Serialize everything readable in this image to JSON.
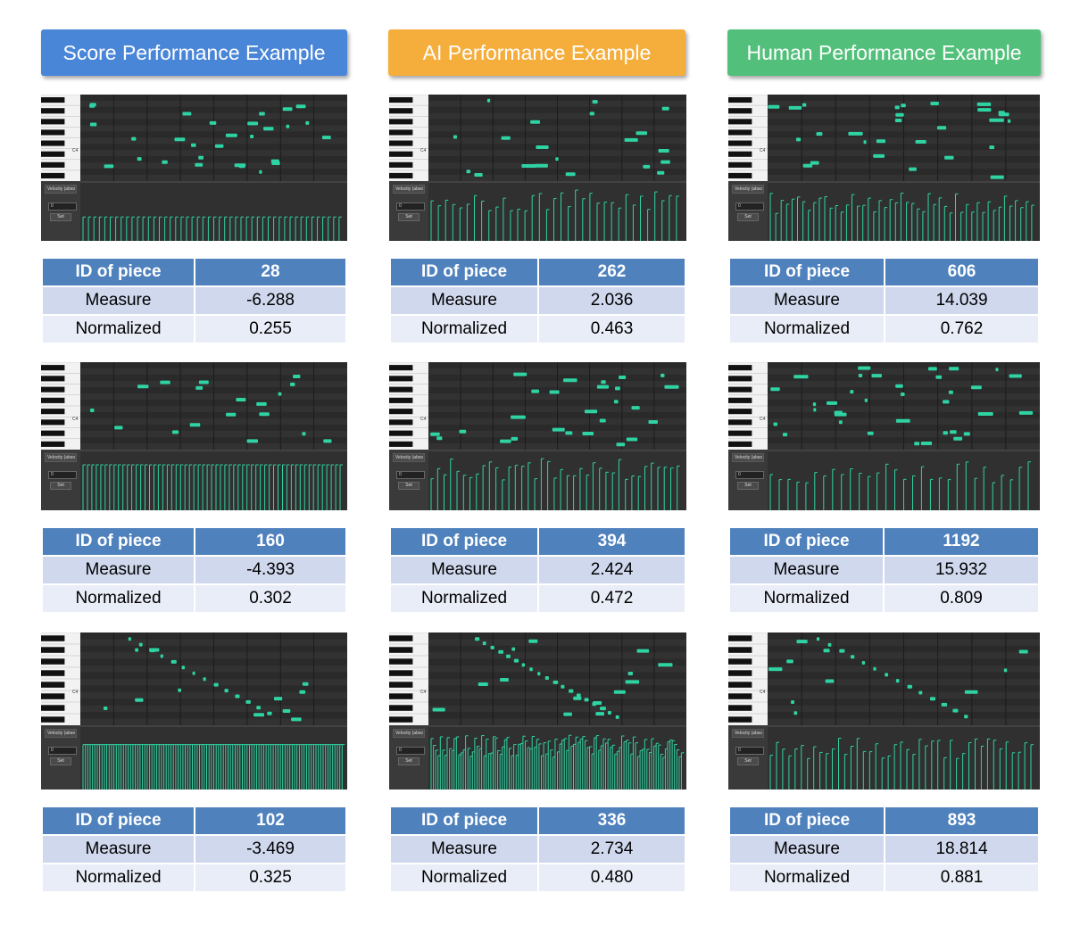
{
  "columns": [
    {
      "header": "Score Performance Example",
      "color": "#4a86d8"
    },
    {
      "header": "AI Performance Example",
      "color": "#f5ae3c"
    },
    {
      "header": "Human Performance Example",
      "color": "#52c07a"
    }
  ],
  "piano_roll": {
    "note_color": "#2fd3a3",
    "velocity_menu": "Velocity (abso",
    "velocity_value": "0",
    "set_button": "Set",
    "octave_label": "C4"
  },
  "table_labels": {
    "id": "ID of piece",
    "measure": "Measure",
    "normalized": "Normalized"
  },
  "examples": [
    {
      "id": "28",
      "measure": "-6.288",
      "normalized": "0.255"
    },
    {
      "id": "262",
      "measure": "2.036",
      "normalized": "0.463"
    },
    {
      "id": "606",
      "measure": "14.039",
      "normalized": "0.762"
    },
    {
      "id": "160",
      "measure": "-4.393",
      "normalized": "0.302"
    },
    {
      "id": "394",
      "measure": "2.424",
      "normalized": "0.472"
    },
    {
      "id": "1192",
      "measure": "15.932",
      "normalized": "0.809"
    },
    {
      "id": "102",
      "measure": "-3.469",
      "normalized": "0.325"
    },
    {
      "id": "336",
      "measure": "2.734",
      "normalized": "0.480"
    },
    {
      "id": "893",
      "measure": "18.814",
      "normalized": "0.881"
    }
  ]
}
